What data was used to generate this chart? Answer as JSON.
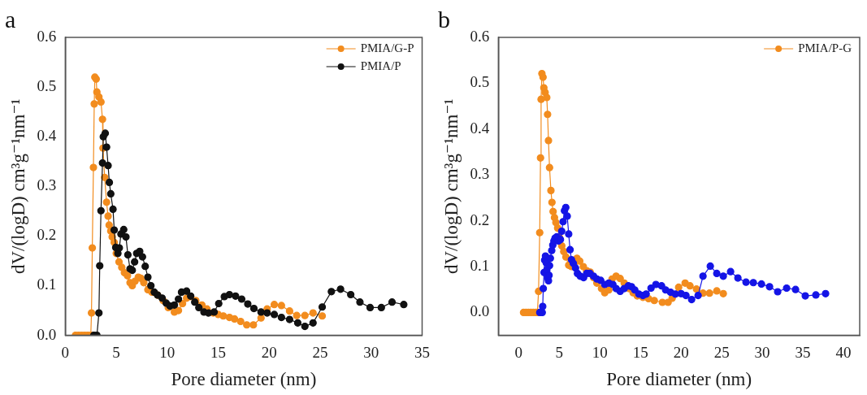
{
  "chart_data": [
    {
      "type": "line",
      "title": "a",
      "xlabel": "Pore diameter (nm)",
      "ylabel": "dV/(logD) cm³g⁻¹nm⁻¹",
      "xlim": [
        0,
        35
      ],
      "xticks": [
        0,
        5,
        10,
        15,
        20,
        25,
        30,
        35
      ],
      "ylim": [
        0,
        0.6
      ],
      "yticks": [
        {
          "value": 0,
          "label": "0.0"
        },
        {
          "value": 0.1,
          "label": "0.1"
        },
        {
          "value": 0.2,
          "label": "0.2"
        },
        {
          "value": 0.3,
          "label": "0.3"
        },
        {
          "value": 0.4,
          "label": "0.4"
        },
        {
          "value": 0.5,
          "label": "0.5"
        },
        {
          "value": 0.6,
          "label": "0.6"
        }
      ],
      "grid": false,
      "legend": "top right",
      "marker": "circle",
      "line_style": "solid",
      "series": [
        {
          "name": "PMIA/G-P",
          "color": "#f28c1e",
          "x": [
            1.0,
            1.3,
            1.6,
            1.9,
            2.2,
            2.5,
            2.57,
            2.65,
            2.76,
            2.84,
            2.9,
            3.03,
            3.1,
            3.3,
            3.5,
            3.65,
            3.7,
            3.86,
            4.05,
            4.2,
            4.3,
            4.46,
            4.6,
            4.8,
            5.0,
            5.27,
            5.54,
            5.8,
            6.1,
            6.35,
            6.57,
            6.84,
            7.16,
            7.4,
            7.7,
            8.1,
            8.5,
            9.05,
            9.6,
            10.1,
            10.7,
            11.1,
            11.5,
            11.9,
            12.3,
            12.8,
            13.4,
            13.9,
            14.5,
            15.0,
            15.5,
            16.1,
            16.6,
            17.2,
            17.8,
            18.45,
            19.2,
            19.8,
            20.5,
            21.2,
            22.0,
            22.7,
            23.5,
            24.3,
            25.2
          ],
          "values": [
            0,
            0,
            0,
            0,
            0,
            0,
            0.045,
            0.176,
            0.338,
            0.466,
            0.52,
            0.516,
            0.49,
            0.48,
            0.47,
            0.435,
            0.377,
            0.318,
            0.268,
            0.24,
            0.222,
            0.21,
            0.198,
            0.187,
            0.165,
            0.148,
            0.137,
            0.126,
            0.12,
            0.106,
            0.1,
            0.109,
            0.117,
            0.115,
            0.106,
            0.092,
            0.087,
            0.081,
            0.07,
            0.056,
            0.047,
            0.05,
            0.064,
            0.075,
            0.078,
            0.07,
            0.061,
            0.053,
            0.045,
            0.042,
            0.039,
            0.036,
            0.033,
            0.028,
            0.021,
            0.021,
            0.035,
            0.053,
            0.062,
            0.06,
            0.049,
            0.04,
            0.04,
            0.045,
            0.039
          ]
        },
        {
          "name": "PMIA/P",
          "color": "#111111",
          "x": [
            2.8,
            3.1,
            3.3,
            3.38,
            3.5,
            3.65,
            3.73,
            3.92,
            4.05,
            4.2,
            4.32,
            4.46,
            4.68,
            4.8,
            4.95,
            5.16,
            5.3,
            5.46,
            5.73,
            5.95,
            6.14,
            6.35,
            6.57,
            6.8,
            7.0,
            7.3,
            7.57,
            7.84,
            8.1,
            8.4,
            8.73,
            9.05,
            9.5,
            9.9,
            10.27,
            10.7,
            11.1,
            11.4,
            11.9,
            12.3,
            12.7,
            13.1,
            13.6,
            14.05,
            14.6,
            15.05,
            15.6,
            16.1,
            16.7,
            17.3,
            17.9,
            18.5,
            19.2,
            19.8,
            20.5,
            21.2,
            22.0,
            22.8,
            23.5,
            24.3,
            25.2,
            26.1,
            27.0,
            28.0,
            28.9,
            29.9,
            31.0,
            32.05,
            33.2
          ],
          "values": [
            0,
            0,
            0.045,
            0.14,
            0.251,
            0.347,
            0.4,
            0.407,
            0.379,
            0.342,
            0.308,
            0.285,
            0.254,
            0.212,
            0.177,
            0.165,
            0.176,
            0.204,
            0.213,
            0.198,
            0.162,
            0.134,
            0.131,
            0.148,
            0.165,
            0.169,
            0.158,
            0.139,
            0.117,
            0.1,
            0.087,
            0.081,
            0.075,
            0.065,
            0.059,
            0.061,
            0.073,
            0.087,
            0.089,
            0.079,
            0.067,
            0.056,
            0.047,
            0.045,
            0.047,
            0.064,
            0.078,
            0.082,
            0.079,
            0.073,
            0.063,
            0.054,
            0.047,
            0.045,
            0.042,
            0.036,
            0.032,
            0.025,
            0.018,
            0.025,
            0.057,
            0.088,
            0.093,
            0.082,
            0.067,
            0.056,
            0.056,
            0.067,
            0.062
          ]
        }
      ]
    },
    {
      "type": "line",
      "title": "b",
      "xlabel": "Pore diameter (nm)",
      "ylabel": "dV/(logD) cm³g⁻¹nm⁻¹",
      "xlim": [
        -2.5,
        42
      ],
      "xticks": [
        0,
        5,
        10,
        15,
        20,
        25,
        30,
        35,
        40
      ],
      "ylim": [
        -0.05,
        0.6
      ],
      "yticks": [
        {
          "value": 0,
          "label": "0.0"
        },
        {
          "value": 0.1,
          "label": "0.1"
        },
        {
          "value": 0.2,
          "label": "0.2"
        },
        {
          "value": 0.3,
          "label": "0.3"
        },
        {
          "value": 0.4,
          "label": "0.4"
        },
        {
          "value": 0.5,
          "label": "0.5"
        },
        {
          "value": 0.6,
          "label": "0.6"
        }
      ],
      "grid": false,
      "legend": "top right",
      "marker": "circle",
      "line_style": "solid",
      "series": [
        {
          "name": "PMIA/P-G",
          "color": "#f28c1e",
          "x": [
            0.6,
            0.9,
            1.2,
            1.5,
            1.8,
            2.1,
            2.3,
            2.45,
            2.59,
            2.69,
            2.76,
            2.86,
            3.0,
            3.1,
            3.26,
            3.46,
            3.56,
            3.67,
            3.8,
            3.97,
            4.1,
            4.24,
            4.41,
            4.58,
            4.8,
            5.04,
            5.31,
            5.55,
            5.82,
            6.16,
            6.5,
            6.84,
            7.18,
            7.52,
            7.96,
            8.37,
            8.81,
            9.22,
            9.63,
            10.2,
            10.6,
            11.1,
            11.5,
            12.0,
            12.5,
            13.0,
            13.6,
            14.1,
            14.6,
            15.3,
            16.0,
            16.7,
            17.7,
            18.4,
            18.9,
            19.7,
            20.5,
            21.1,
            21.9,
            22.7,
            23.5,
            24.4,
            25.2
          ],
          "values": [
            0,
            0,
            0,
            0,
            0,
            0,
            0,
            0.046,
            0.174,
            0.337,
            0.465,
            0.521,
            0.513,
            0.49,
            0.48,
            0.469,
            0.432,
            0.375,
            0.316,
            0.266,
            0.24,
            0.22,
            0.207,
            0.196,
            0.184,
            0.163,
            0.145,
            0.133,
            0.121,
            0.103,
            0.1,
            0.106,
            0.118,
            0.112,
            0.1,
            0.091,
            0.088,
            0.076,
            0.064,
            0.052,
            0.043,
            0.049,
            0.073,
            0.079,
            0.074,
            0.064,
            0.052,
            0.043,
            0.036,
            0.033,
            0.03,
            0.026,
            0.022,
            0.022,
            0.031,
            0.055,
            0.064,
            0.058,
            0.051,
            0.042,
            0.042,
            0.047,
            0.041
          ]
        },
        {
          "color": "#1414e6",
          "x": [
            2.6,
            2.9,
            2.96,
            3.03,
            3.13,
            3.2,
            3.3,
            3.4,
            3.47,
            3.57,
            3.67,
            3.74,
            3.8,
            3.9,
            4.07,
            4.2,
            4.34,
            4.48,
            4.7,
            4.9,
            5.14,
            5.3,
            5.47,
            5.64,
            5.8,
            5.98,
            6.16,
            6.33,
            6.5,
            6.73,
            7.0,
            7.24,
            7.58,
            8.0,
            8.37,
            8.78,
            9.22,
            9.63,
            10.1,
            10.6,
            11.1,
            11.6,
            12.0,
            12.5,
            13.0,
            13.5,
            13.9,
            14.3,
            14.8,
            15.3,
            15.7,
            16.3,
            16.9,
            17.6,
            18.1,
            18.7,
            19.3,
            20.0,
            20.6,
            21.3,
            22.1,
            22.7,
            23.6,
            24.4,
            25.2,
            26.1,
            27.0,
            28.0,
            28.9,
            29.9,
            30.9,
            31.9,
            33.0,
            34.1,
            35.3,
            36.6,
            37.8
          ],
          "values": [
            0,
            0,
            0.013,
            0.052,
            0.087,
            0.114,
            0.123,
            0.108,
            0.093,
            0.075,
            0.069,
            0.081,
            0.102,
            0.118,
            0.135,
            0.147,
            0.156,
            0.162,
            0.165,
            0.156,
            0.159,
            0.177,
            0.198,
            0.222,
            0.229,
            0.21,
            0.171,
            0.137,
            0.115,
            0.107,
            0.097,
            0.085,
            0.079,
            0.076,
            0.085,
            0.085,
            0.079,
            0.073,
            0.07,
            0.061,
            0.064,
            0.061,
            0.052,
            0.046,
            0.052,
            0.058,
            0.056,
            0.049,
            0.04,
            0.037,
            0.04,
            0.053,
            0.061,
            0.058,
            0.049,
            0.044,
            0.04,
            0.041,
            0.037,
            0.028,
            0.037,
            0.079,
            0.101,
            0.085,
            0.079,
            0.089,
            0.075,
            0.066,
            0.065,
            0.062,
            0.056,
            0.045,
            0.053,
            0.05,
            0.036,
            0.038,
            0.041
          ]
        }
      ]
    }
  ]
}
